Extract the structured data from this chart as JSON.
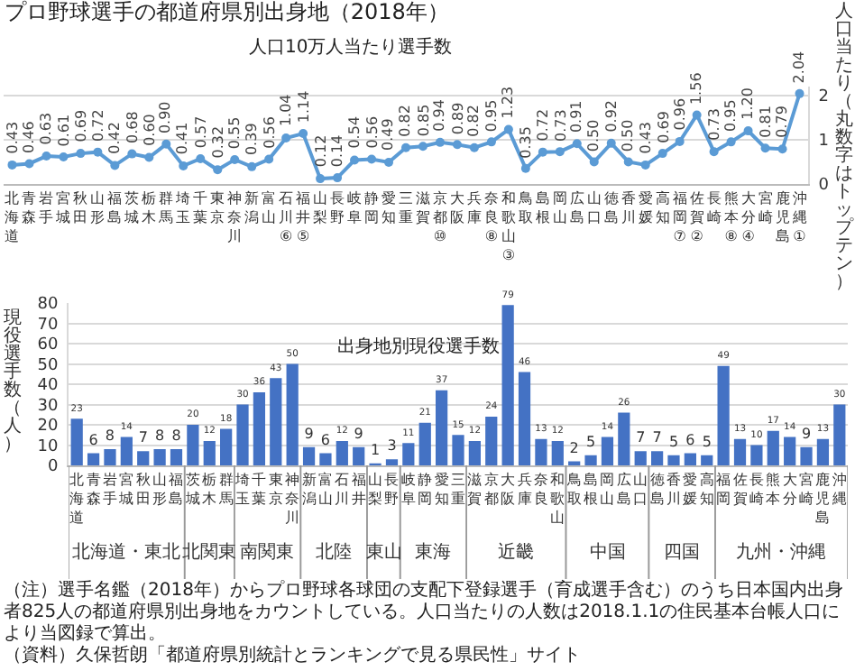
{
  "chart_data": [
    {
      "type": "line",
      "title": "プロ野球選手の都道府県別出身地（2018年）",
      "subtitle": "人口10万人当たり選手数",
      "ylabel": "人口当たり（丸数字はトップテン）",
      "color": "#5b9bd5",
      "marker": "circle",
      "grid": "y",
      "ylim": [
        0,
        2.2
      ],
      "yticks": [
        0,
        1,
        2
      ],
      "categories": [
        "北海道",
        "青森",
        "岩手",
        "宮城",
        "秋田",
        "山形",
        "福島",
        "茨城",
        "栃木",
        "群馬",
        "埼玉",
        "千葉",
        "東京",
        "神奈川",
        "新潟",
        "富山",
        "石川⑥",
        "福井⑤",
        "山梨",
        "長野",
        "岐阜",
        "静岡",
        "愛知",
        "三重",
        "滋賀",
        "京都⑩",
        "大阪",
        "兵庫",
        "奈良⑧",
        "和歌山③",
        "鳥取",
        "島根",
        "岡山",
        "広島",
        "山口",
        "徳島",
        "香川",
        "愛媛",
        "高知",
        "福岡⑦",
        "佐賀②",
        "長崎",
        "熊本⑧",
        "大分④",
        "宮崎",
        "鹿児島",
        "沖縄①"
      ],
      "values": [
        0.43,
        0.46,
        0.63,
        0.61,
        0.69,
        0.72,
        0.42,
        0.68,
        0.6,
        0.9,
        0.41,
        0.57,
        0.32,
        0.55,
        0.39,
        0.56,
        1.04,
        1.14,
        0.12,
        0.14,
        0.54,
        0.56,
        0.49,
        0.82,
        0.85,
        0.94,
        0.89,
        0.82,
        0.95,
        1.23,
        0.35,
        0.72,
        0.73,
        0.91,
        0.5,
        0.92,
        0.5,
        0.43,
        0.69,
        0.96,
        1.56,
        0.73,
        0.95,
        1.2,
        0.81,
        0.79,
        2.04
      ],
      "value_labels": [
        "0.43",
        "0.46",
        "0.63",
        "0.61",
        "0.69",
        "0.72",
        "0.42",
        "0.68",
        "0.60",
        "0.90",
        "0.41",
        "0.57",
        "0.32",
        "0.55",
        "0.39",
        "0.56",
        "1.04",
        "1.14",
        "0.12",
        "0.14",
        "0.54",
        "0.56",
        "0.49",
        "0.82",
        "0.85",
        "0.94",
        "0.89",
        "0.82",
        "0.95",
        "1.23",
        "0.35",
        "0.72",
        "0.73",
        "0.91",
        "0.50",
        "0.92",
        "0.50",
        "0.43",
        "0.69",
        "0.96",
        "1.56",
        "0.73",
        "0.95",
        "1.20",
        "0.81",
        "0.79",
        "2.04"
      ]
    },
    {
      "type": "bar",
      "title": "出身地別現役選手数",
      "ylabel": "現役選手数（人）",
      "color": "#4472c4",
      "grid": "y",
      "data_labels": true,
      "ylim": [
        0,
        80
      ],
      "yticks": [
        0,
        10,
        20,
        30,
        40,
        50,
        60,
        70,
        80
      ],
      "categories": [
        "北海道",
        "青森",
        "岩手",
        "宮城",
        "秋田",
        "山形",
        "福島",
        "茨城",
        "栃木",
        "群馬",
        "埼玉",
        "千葉",
        "東京",
        "神奈川",
        "新潟",
        "富山",
        "石川",
        "福井",
        "山梨",
        "長野",
        "岐阜",
        "静岡",
        "愛知",
        "三重",
        "滋賀",
        "京都",
        "大阪",
        "兵庫",
        "奈良",
        "和歌山",
        "鳥取",
        "島根",
        "岡山",
        "広島",
        "山口",
        "徳島",
        "香川",
        "愛媛",
        "高知",
        "福岡",
        "佐賀",
        "長崎",
        "熊本",
        "大分",
        "宮崎",
        "鹿児島",
        "沖縄"
      ],
      "values": [
        23,
        6,
        8,
        14,
        7,
        8,
        8,
        20,
        12,
        18,
        30,
        36,
        43,
        50,
        9,
        6,
        12,
        9,
        1,
        3,
        11,
        21,
        37,
        15,
        12,
        24,
        79,
        46,
        13,
        12,
        2,
        5,
        14,
        26,
        7,
        7,
        5,
        6,
        5,
        49,
        13,
        10,
        17,
        14,
        9,
        13,
        30
      ],
      "annotations": [
        "北海道・東北",
        "北関東",
        "南関東",
        "北陸",
        "東山",
        "東海",
        "近畿",
        "中国",
        "四国",
        "九州・沖縄",
        "（注）選手名鑑（2018年）からプロ野球各球団の支配下登録選手（育成選手含む）のうち日本国内出身者825人の都道府県別出身地をカウントしている。人口当たりの人数は2018.1.1の住民基本台帳人口により当図録で算出。",
        "（資料）久保哲朗「都道府県別統計とランキングで見る県民性」サイト"
      ]
    }
  ]
}
